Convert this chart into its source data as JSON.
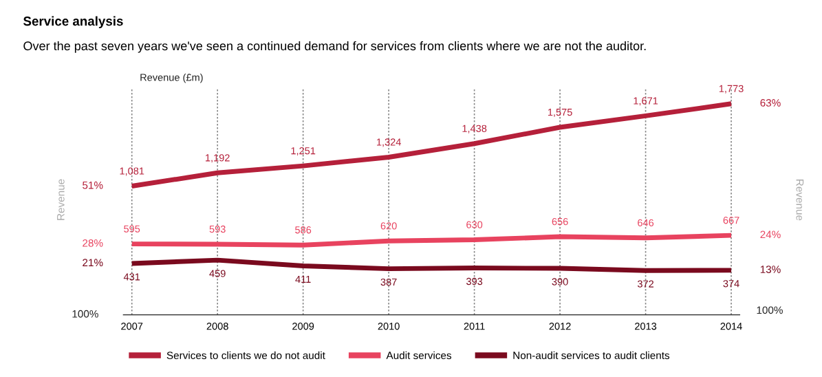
{
  "chart_data": {
    "type": "line",
    "title": "Service analysis",
    "subtitle": "Over the past seven years we've seen a continued demand for services from clients where we are not the auditor.",
    "categories": [
      "2007",
      "2008",
      "2009",
      "2010",
      "2011",
      "2012",
      "2013",
      "2014"
    ],
    "series": [
      {
        "name": "Services to clients we do not audit",
        "color": "#b5203a",
        "values": [
          1081,
          1192,
          1251,
          1324,
          1438,
          1575,
          1671,
          1773
        ],
        "value_labels": [
          "1,081",
          "1,192",
          "1,251",
          "1,324",
          "1,438",
          "1,575",
          "1,671",
          "1,773"
        ]
      },
      {
        "name": "Audit services",
        "color": "#e8435f",
        "values": [
          595,
          593,
          586,
          620,
          630,
          656,
          646,
          667
        ],
        "value_labels": [
          "595",
          "593",
          "586",
          "620",
          "630",
          "656",
          "646",
          "667"
        ]
      },
      {
        "name": "Non-audit services to audit clients",
        "color": "#7a0a1e",
        "values": [
          431,
          459,
          411,
          387,
          393,
          390,
          372,
          374
        ],
        "value_labels": [
          "431",
          "459",
          "411",
          "387",
          "393",
          "390",
          "372",
          "374"
        ]
      }
    ],
    "ylim": [
      0,
      1900
    ],
    "tick_labels": "x",
    "grid": "x",
    "legend": "bottom",
    "marker": "none",
    "line_style": "solid",
    "annotations": [
      "Revenue (£m)",
      "Revenue",
      "Revenue",
      "100%",
      "100%",
      {
        "text": "51%",
        "x": "2007",
        "y": 1081
      },
      {
        "text": "28%",
        "x": "2007",
        "y": 595
      },
      {
        "text": "21%",
        "x": "2007",
        "y": 431
      },
      {
        "text": "63%",
        "x": "2014",
        "y": 1773
      },
      {
        "text": "24%",
        "x": "2014",
        "y": 667
      },
      {
        "text": "13%",
        "x": "2014",
        "y": 374
      }
    ]
  }
}
